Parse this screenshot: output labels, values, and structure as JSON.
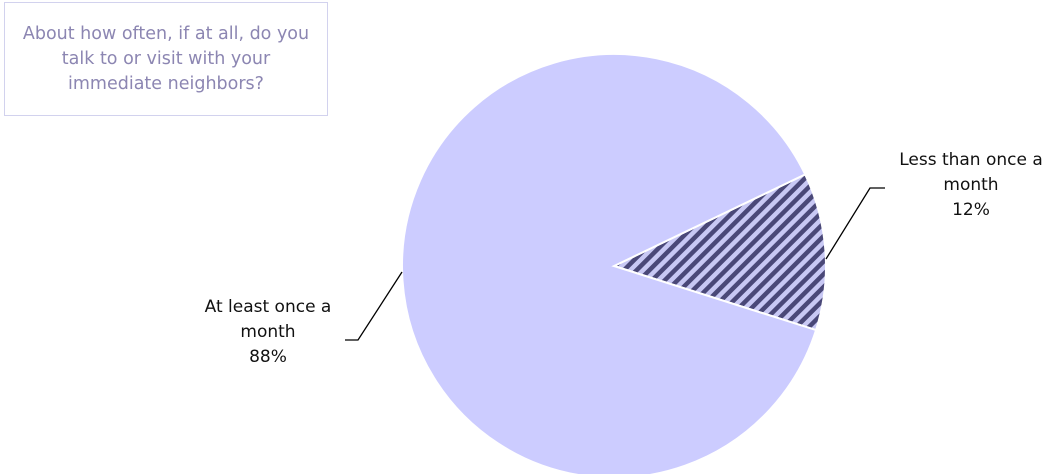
{
  "chart_data": {
    "type": "pie",
    "title": "About how often, if at all, do you talk to or visit with your immediate neighbors?",
    "slices": [
      {
        "label_line1": "Less than once a",
        "label_line2": "month",
        "value": 12,
        "value_text": "12%",
        "color": "#9b98c9",
        "pattern": "diagonal-stripes"
      },
      {
        "label_line1": "At least once a",
        "label_line2": "month",
        "value": 88,
        "value_text": "88%",
        "color": "#ccccff",
        "pattern": "solid"
      }
    ],
    "legend": "none"
  },
  "colors": {
    "title_text": "#8c86b2",
    "title_border": "#d2d2ee",
    "stripe_dark": "#4a4878",
    "stripe_light": "#c8c8f4"
  }
}
